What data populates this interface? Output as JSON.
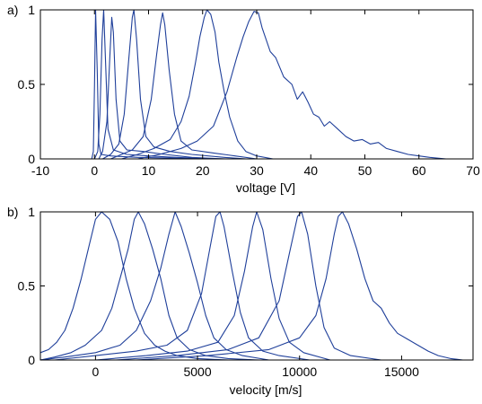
{
  "chart_data": [
    {
      "type": "line",
      "panel_label": "a)",
      "xlabel": "voltage [V]",
      "ylabel": "",
      "xlim": [
        -10,
        70
      ],
      "ylim": [
        0,
        1
      ],
      "xticks": [
        -10,
        0,
        10,
        20,
        30,
        40,
        50,
        60,
        70
      ],
      "xtick_labels": [
        "-10",
        "0",
        "10",
        "20",
        "30",
        "40",
        "50",
        "60",
        "70"
      ],
      "yticks": [
        0,
        0.5,
        1
      ],
      "ytick_labels": [
        "0",
        "0.5",
        "1"
      ],
      "color": "#1f3f9a",
      "grid": false,
      "series": [
        {
          "values": [
            [
              -0.5,
              0
            ],
            [
              -0.2,
              0.05
            ],
            [
              0.0,
              0.5
            ],
            [
              0.2,
              1.0
            ],
            [
              0.5,
              0.6
            ],
            [
              0.8,
              0.1
            ],
            [
              1.2,
              0.03
            ],
            [
              3,
              0.02
            ],
            [
              8,
              0.01
            ],
            [
              15,
              0.005
            ],
            [
              25,
              0
            ]
          ]
        },
        {
          "values": [
            [
              0.0,
              0
            ],
            [
              0.6,
              0.05
            ],
            [
              1.0,
              0.3
            ],
            [
              1.4,
              0.8
            ],
            [
              1.7,
              1.0
            ],
            [
              2.0,
              0.7
            ],
            [
              2.5,
              0.2
            ],
            [
              3.5,
              0.06
            ],
            [
              6,
              0.03
            ],
            [
              10,
              0.02
            ],
            [
              15,
              0.01
            ],
            [
              22,
              0
            ]
          ]
        },
        {
          "values": [
            [
              0.8,
              0
            ],
            [
              1.5,
              0.05
            ],
            [
              2.3,
              0.25
            ],
            [
              2.8,
              0.65
            ],
            [
              3.2,
              0.95
            ],
            [
              3.5,
              0.85
            ],
            [
              4.0,
              0.4
            ],
            [
              4.7,
              0.12
            ],
            [
              6,
              0.06
            ],
            [
              9,
              0.05
            ],
            [
              13,
              0.03
            ],
            [
              18,
              0.01
            ],
            [
              24,
              0
            ]
          ]
        },
        {
          "values": [
            [
              1.5,
              0
            ],
            [
              3,
              0.03
            ],
            [
              4.5,
              0.1
            ],
            [
              5.5,
              0.3
            ],
            [
              6.3,
              0.65
            ],
            [
              7.0,
              0.95
            ],
            [
              7.3,
              1.0
            ],
            [
              7.8,
              0.8
            ],
            [
              8.5,
              0.4
            ],
            [
              9.5,
              0.15
            ],
            [
              11,
              0.08
            ],
            [
              14,
              0.05
            ],
            [
              18,
              0.03
            ],
            [
              24,
              0.01
            ],
            [
              28,
              0
            ]
          ]
        },
        {
          "values": [
            [
              3,
              0
            ],
            [
              5,
              0.03
            ],
            [
              7,
              0.06
            ],
            [
              9,
              0.15
            ],
            [
              10.5,
              0.4
            ],
            [
              11.5,
              0.7
            ],
            [
              12.2,
              0.9
            ],
            [
              12.6,
              0.98
            ],
            [
              13.0,
              0.9
            ],
            [
              13.8,
              0.6
            ],
            [
              14.8,
              0.3
            ],
            [
              16,
              0.12
            ],
            [
              18,
              0.06
            ],
            [
              22,
              0.04
            ],
            [
              26,
              0.02
            ],
            [
              30,
              0
            ]
          ]
        },
        {
          "values": [
            [
              5,
              0
            ],
            [
              8,
              0.03
            ],
            [
              11,
              0.07
            ],
            [
              14,
              0.13
            ],
            [
              16,
              0.25
            ],
            [
              17.5,
              0.42
            ],
            [
              18.7,
              0.65
            ],
            [
              19.5,
              0.82
            ],
            [
              20.3,
              0.95
            ],
            [
              20.8,
              1.0
            ],
            [
              21.5,
              0.97
            ],
            [
              22.3,
              0.85
            ],
            [
              23,
              0.65
            ],
            [
              24,
              0.45
            ],
            [
              25,
              0.28
            ],
            [
              26.5,
              0.12
            ],
            [
              28,
              0.05
            ],
            [
              30,
              0.02
            ],
            [
              33,
              0
            ]
          ]
        },
        {
          "values": [
            [
              8,
              0
            ],
            [
              12,
              0.03
            ],
            [
              16,
              0.07
            ],
            [
              19,
              0.12
            ],
            [
              22,
              0.22
            ],
            [
              24.5,
              0.45
            ],
            [
              26.3,
              0.68
            ],
            [
              27.5,
              0.82
            ],
            [
              28.5,
              0.92
            ],
            [
              29.5,
              0.99
            ],
            [
              30.3,
              0.98
            ],
            [
              31,
              0.88
            ],
            [
              32.5,
              0.72
            ],
            [
              33.5,
              0.68
            ],
            [
              35,
              0.55
            ],
            [
              36.5,
              0.5
            ],
            [
              37.5,
              0.4
            ],
            [
              38.5,
              0.45
            ],
            [
              39.5,
              0.38
            ],
            [
              40.5,
              0.3
            ],
            [
              41.5,
              0.28
            ],
            [
              42.5,
              0.22
            ],
            [
              43.5,
              0.25
            ],
            [
              45,
              0.2
            ],
            [
              46.5,
              0.15
            ],
            [
              48,
              0.12
            ],
            [
              49.5,
              0.13
            ],
            [
              51,
              0.1
            ],
            [
              52.5,
              0.11
            ],
            [
              54,
              0.07
            ],
            [
              56,
              0.05
            ],
            [
              58,
              0.03
            ],
            [
              60,
              0.02
            ],
            [
              62,
              0.01
            ],
            [
              65,
              0
            ]
          ]
        }
      ]
    },
    {
      "type": "line",
      "panel_label": "b)",
      "xlabel": "velocity [m/s]",
      "ylabel": "",
      "xlim": [
        -2700,
        18500
      ],
      "ylim": [
        0,
        1
      ],
      "xticks": [
        0,
        5000,
        10000,
        15000
      ],
      "xtick_labels": [
        "0",
        "5000",
        "10000",
        "15000"
      ],
      "yticks": [
        0,
        0.5,
        1
      ],
      "ytick_labels": [
        "0",
        "0.5",
        "1"
      ],
      "color": "#1f3f9a",
      "grid": false,
      "series": [
        {
          "values": [
            [
              -2700,
              0.05
            ],
            [
              -2300,
              0.07
            ],
            [
              -1900,
              0.12
            ],
            [
              -1500,
              0.2
            ],
            [
              -1100,
              0.35
            ],
            [
              -700,
              0.55
            ],
            [
              -300,
              0.78
            ],
            [
              0,
              0.95
            ],
            [
              300,
              1.0
            ],
            [
              700,
              0.95
            ],
            [
              1100,
              0.8
            ],
            [
              1500,
              0.55
            ],
            [
              1900,
              0.35
            ],
            [
              2400,
              0.18
            ],
            [
              2900,
              0.1
            ],
            [
              3400,
              0.06
            ],
            [
              4000,
              0.03
            ],
            [
              5000,
              0.01
            ],
            [
              6500,
              0
            ]
          ]
        },
        {
          "values": [
            [
              -2700,
              0
            ],
            [
              -2000,
              0.02
            ],
            [
              -1200,
              0.05
            ],
            [
              -500,
              0.1
            ],
            [
              300,
              0.2
            ],
            [
              800,
              0.35
            ],
            [
              1200,
              0.55
            ],
            [
              1600,
              0.75
            ],
            [
              1900,
              0.95
            ],
            [
              2100,
              1.0
            ],
            [
              2400,
              0.92
            ],
            [
              2800,
              0.75
            ],
            [
              3200,
              0.55
            ],
            [
              3600,
              0.3
            ],
            [
              4000,
              0.15
            ],
            [
              4600,
              0.07
            ],
            [
              5400,
              0.03
            ],
            [
              6500,
              0.01
            ],
            [
              8000,
              0
            ]
          ]
        },
        {
          "values": [
            [
              -2700,
              0
            ],
            [
              -1500,
              0.02
            ],
            [
              0,
              0.05
            ],
            [
              1200,
              0.1
            ],
            [
              2000,
              0.2
            ],
            [
              2700,
              0.4
            ],
            [
              3200,
              0.62
            ],
            [
              3600,
              0.85
            ],
            [
              3900,
              1.0
            ],
            [
              4200,
              0.9
            ],
            [
              4600,
              0.72
            ],
            [
              5000,
              0.52
            ],
            [
              5400,
              0.3
            ],
            [
              5800,
              0.15
            ],
            [
              6400,
              0.07
            ],
            [
              7200,
              0.03
            ],
            [
              8500,
              0
            ]
          ]
        },
        {
          "values": [
            [
              -2000,
              0
            ],
            [
              0,
              0.03
            ],
            [
              2000,
              0.06
            ],
            [
              3500,
              0.1
            ],
            [
              4500,
              0.2
            ],
            [
              5200,
              0.45
            ],
            [
              5600,
              0.75
            ],
            [
              5900,
              0.97
            ],
            [
              6100,
              1.0
            ],
            [
              6300,
              0.9
            ],
            [
              6700,
              0.6
            ],
            [
              7100,
              0.32
            ],
            [
              7500,
              0.15
            ],
            [
              8200,
              0.06
            ],
            [
              9000,
              0.03
            ],
            [
              10500,
              0
            ]
          ]
        },
        {
          "values": [
            [
              0,
              0
            ],
            [
              2500,
              0.03
            ],
            [
              4500,
              0.06
            ],
            [
              6000,
              0.12
            ],
            [
              6800,
              0.3
            ],
            [
              7300,
              0.6
            ],
            [
              7700,
              0.9
            ],
            [
              7900,
              1.0
            ],
            [
              8200,
              0.88
            ],
            [
              8600,
              0.55
            ],
            [
              9000,
              0.28
            ],
            [
              9500,
              0.12
            ],
            [
              10200,
              0.05
            ],
            [
              11500,
              0
            ]
          ]
        },
        {
          "values": [
            [
              1000,
              0
            ],
            [
              4000,
              0.03
            ],
            [
              6500,
              0.07
            ],
            [
              8000,
              0.15
            ],
            [
              9000,
              0.4
            ],
            [
              9500,
              0.72
            ],
            [
              9900,
              0.97
            ],
            [
              10100,
              1.0
            ],
            [
              10400,
              0.85
            ],
            [
              10800,
              0.5
            ],
            [
              11200,
              0.22
            ],
            [
              11700,
              0.08
            ],
            [
              12500,
              0.03
            ],
            [
              14000,
              0
            ]
          ]
        },
        {
          "values": [
            [
              2000,
              0
            ],
            [
              5500,
              0.03
            ],
            [
              8500,
              0.07
            ],
            [
              10000,
              0.15
            ],
            [
              10800,
              0.3
            ],
            [
              11300,
              0.55
            ],
            [
              11700,
              0.85
            ],
            [
              11900,
              0.97
            ],
            [
              12100,
              1.0
            ],
            [
              12400,
              0.92
            ],
            [
              12800,
              0.75
            ],
            [
              13200,
              0.55
            ],
            [
              13600,
              0.4
            ],
            [
              14000,
              0.35
            ],
            [
              14400,
              0.25
            ],
            [
              14800,
              0.18
            ],
            [
              15300,
              0.14
            ],
            [
              15800,
              0.1
            ],
            [
              16300,
              0.06
            ],
            [
              16800,
              0.03
            ],
            [
              17400,
              0.01
            ],
            [
              18000,
              0
            ]
          ]
        }
      ]
    }
  ]
}
